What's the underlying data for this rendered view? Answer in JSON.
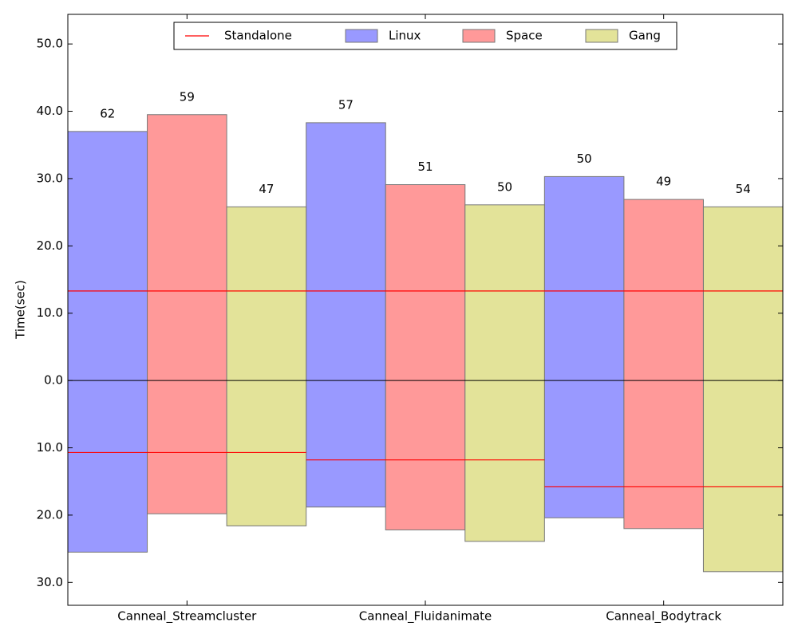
{
  "chart_data": {
    "type": "mirrored-bar",
    "ylabel": "Time(sec)",
    "categories": [
      "Canneal_Streamcluster",
      "Canneal_Fluidanimate",
      "Canneal_Bodytrack"
    ],
    "ylim": [
      -33.4,
      54.4
    ],
    "yticks": [
      {
        "value": 50,
        "label": "50.0"
      },
      {
        "value": 40,
        "label": "40.0"
      },
      {
        "value": 30,
        "label": "30.0"
      },
      {
        "value": 20,
        "label": "20.0"
      },
      {
        "value": 10,
        "label": "10.0"
      },
      {
        "value": 0,
        "label": "0.0"
      },
      {
        "value": -10,
        "label": "10.0"
      },
      {
        "value": -20,
        "label": "20.0"
      },
      {
        "value": -30,
        "label": "30.0"
      }
    ],
    "reference": {
      "name": "Standalone",
      "color": "#ff0000",
      "upper": [
        13.3,
        13.3,
        13.3
      ],
      "lower": [
        -10.7,
        -11.8,
        -15.8
      ]
    },
    "series": [
      {
        "name": "Linux",
        "color": "#9999ff",
        "values": [
          37.0,
          38.3,
          30.3
        ],
        "lower": [
          -25.5,
          -18.8,
          -20.4
        ],
        "labels": [
          62,
          57,
          50
        ]
      },
      {
        "name": "Space",
        "color": "#ff9999",
        "values": [
          39.5,
          29.1,
          26.9
        ],
        "lower": [
          -19.8,
          -22.2,
          -22.0
        ],
        "labels": [
          59,
          51,
          49
        ]
      },
      {
        "name": "Gang",
        "color": "#e3e399",
        "values": [
          25.8,
          26.1,
          25.8
        ],
        "lower": [
          -21.6,
          -23.9,
          -28.4
        ],
        "labels": [
          47,
          50,
          54
        ]
      }
    ]
  }
}
